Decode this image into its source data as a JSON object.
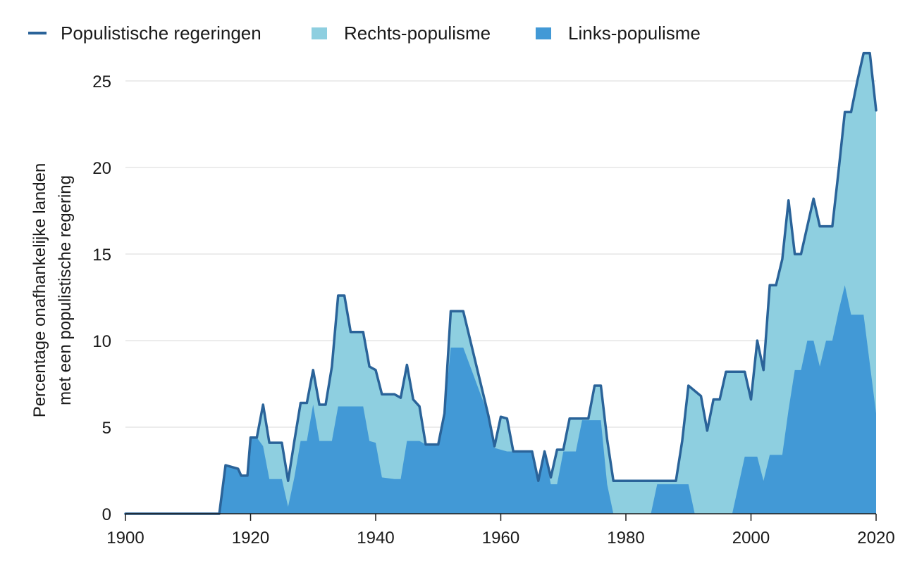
{
  "chart_data": {
    "type": "area",
    "xlim": [
      1900,
      2020
    ],
    "ylim": [
      0,
      25
    ],
    "xticks": [
      1900,
      1920,
      1940,
      1960,
      1980,
      2000,
      2020
    ],
    "yticks": [
      0,
      5,
      10,
      15,
      20,
      25
    ],
    "ylabel_lines": [
      "Percentage onafhankelijke landen",
      "met een populistische regering"
    ],
    "grid": "horizontal",
    "legend_position": "top-left",
    "legend": [
      {
        "key": "total",
        "label": "Populistische regeringen",
        "symbol": "line",
        "color": "#2a6399"
      },
      {
        "key": "right",
        "label": "Rechts-populisme",
        "symbol": "square",
        "color": "#8ecfe0"
      },
      {
        "key": "left",
        "label": "Links-populisme",
        "symbol": "square",
        "color": "#4299d6"
      }
    ],
    "series": [
      {
        "name": "Populistische regeringen",
        "kind": "line",
        "color": "#2a6399",
        "points": [
          [
            1900,
            0
          ],
          [
            1915,
            0
          ],
          [
            1916,
            2.8
          ],
          [
            1917,
            2.7
          ],
          [
            1918,
            2.6
          ],
          [
            1918.5,
            2.2
          ],
          [
            1919.5,
            2.2
          ],
          [
            1920,
            4.4
          ],
          [
            1921,
            4.4
          ],
          [
            1922,
            6.3
          ],
          [
            1923,
            4.1
          ],
          [
            1925,
            4.1
          ],
          [
            1926,
            1.9
          ],
          [
            1927,
            4.2
          ],
          [
            1928,
            6.4
          ],
          [
            1929,
            6.4
          ],
          [
            1930,
            8.3
          ],
          [
            1931,
            6.3
          ],
          [
            1932,
            6.3
          ],
          [
            1933,
            8.5
          ],
          [
            1934,
            12.6
          ],
          [
            1935,
            12.6
          ],
          [
            1936,
            10.5
          ],
          [
            1938,
            10.5
          ],
          [
            1939,
            8.5
          ],
          [
            1940,
            8.3
          ],
          [
            1941,
            6.9
          ],
          [
            1943,
            6.9
          ],
          [
            1944,
            6.7
          ],
          [
            1945,
            8.6
          ],
          [
            1946,
            6.6
          ],
          [
            1947,
            6.2
          ],
          [
            1948,
            4.0
          ],
          [
            1950,
            4.0
          ],
          [
            1951,
            5.8
          ],
          [
            1952,
            11.7
          ],
          [
            1954,
            11.7
          ],
          [
            1958,
            5.7
          ],
          [
            1959,
            3.9
          ],
          [
            1960,
            5.6
          ],
          [
            1961,
            5.5
          ],
          [
            1962,
            3.6
          ],
          [
            1964,
            3.6
          ],
          [
            1965,
            3.6
          ],
          [
            1966,
            1.9
          ],
          [
            1967,
            3.6
          ],
          [
            1968,
            2.1
          ],
          [
            1969,
            3.7
          ],
          [
            1970,
            3.7
          ],
          [
            1971,
            5.5
          ],
          [
            1974,
            5.5
          ],
          [
            1975,
            7.4
          ],
          [
            1976,
            7.4
          ],
          [
            1977,
            4.3
          ],
          [
            1978,
            1.9
          ],
          [
            1988,
            1.9
          ],
          [
            1989,
            4.2
          ],
          [
            1990,
            7.4
          ],
          [
            1992,
            6.8
          ],
          [
            1993,
            4.8
          ],
          [
            1994,
            6.6
          ],
          [
            1995,
            6.6
          ],
          [
            1996,
            8.2
          ],
          [
            1998,
            8.2
          ],
          [
            1999,
            8.2
          ],
          [
            2000,
            6.6
          ],
          [
            2001,
            10.0
          ],
          [
            2002,
            8.3
          ],
          [
            2003,
            13.2
          ],
          [
            2004,
            13.2
          ],
          [
            2005,
            14.7
          ],
          [
            2006,
            18.1
          ],
          [
            2007,
            15.0
          ],
          [
            2008,
            15.0
          ],
          [
            2010,
            18.2
          ],
          [
            2011,
            16.6
          ],
          [
            2013,
            16.6
          ],
          [
            2014,
            19.8
          ],
          [
            2015,
            23.2
          ],
          [
            2016,
            23.2
          ],
          [
            2017,
            25.0
          ],
          [
            2018,
            26.6
          ],
          [
            2019,
            26.6
          ],
          [
            2020,
            23.3
          ]
        ]
      },
      {
        "name": "Links-populisme",
        "kind": "area",
        "color": "#4299d6",
        "points": [
          [
            1900,
            0
          ],
          [
            1915,
            0
          ],
          [
            1916,
            2.8
          ],
          [
            1917,
            2.7
          ],
          [
            1918,
            2.6
          ],
          [
            1918.5,
            2.2
          ],
          [
            1919.5,
            2.2
          ],
          [
            1920,
            4.4
          ],
          [
            1921,
            4.4
          ],
          [
            1922,
            3.9
          ],
          [
            1923,
            2.0
          ],
          [
            1925,
            2.0
          ],
          [
            1926,
            0.4
          ],
          [
            1927,
            2.1
          ],
          [
            1928,
            4.2
          ],
          [
            1929,
            4.2
          ],
          [
            1930,
            6.3
          ],
          [
            1931,
            4.2
          ],
          [
            1932,
            4.2
          ],
          [
            1933,
            4.2
          ],
          [
            1934,
            6.2
          ],
          [
            1937,
            6.2
          ],
          [
            1938,
            6.2
          ],
          [
            1939,
            4.2
          ],
          [
            1940,
            4.1
          ],
          [
            1941,
            2.1
          ],
          [
            1943,
            2.0
          ],
          [
            1944,
            2.0
          ],
          [
            1945,
            4.2
          ],
          [
            1946,
            4.2
          ],
          [
            1947,
            4.2
          ],
          [
            1948,
            4.0
          ],
          [
            1950,
            4.0
          ],
          [
            1951,
            5.8
          ],
          [
            1952,
            9.6
          ],
          [
            1954,
            9.6
          ],
          [
            1958,
            5.7
          ],
          [
            1959,
            3.8
          ],
          [
            1960,
            3.7
          ],
          [
            1961,
            3.6
          ],
          [
            1962,
            3.6
          ],
          [
            1964,
            3.6
          ],
          [
            1965,
            3.6
          ],
          [
            1966,
            1.9
          ],
          [
            1967,
            3.6
          ],
          [
            1968,
            1.7
          ],
          [
            1969,
            1.7
          ],
          [
            1970,
            3.6
          ],
          [
            1971,
            3.6
          ],
          [
            1972,
            3.6
          ],
          [
            1973,
            5.4
          ],
          [
            1976,
            5.4
          ],
          [
            1977,
            1.7
          ],
          [
            1978,
            0
          ],
          [
            1984,
            0
          ],
          [
            1985,
            1.7
          ],
          [
            1990,
            1.7
          ],
          [
            1991,
            0
          ],
          [
            1997,
            0
          ],
          [
            1999,
            3.3
          ],
          [
            2000,
            3.3
          ],
          [
            2001,
            3.3
          ],
          [
            2002,
            1.9
          ],
          [
            2003,
            3.4
          ],
          [
            2004,
            3.4
          ],
          [
            2005,
            3.4
          ],
          [
            2006,
            6.0
          ],
          [
            2007,
            8.3
          ],
          [
            2008,
            8.3
          ],
          [
            2009,
            10.0
          ],
          [
            2010,
            10.0
          ],
          [
            2011,
            8.5
          ],
          [
            2012,
            10.0
          ],
          [
            2013,
            10.0
          ],
          [
            2014,
            11.7
          ],
          [
            2015,
            13.2
          ],
          [
            2016,
            11.5
          ],
          [
            2017,
            11.5
          ],
          [
            2018,
            11.5
          ],
          [
            2020,
            5.8
          ]
        ]
      }
    ]
  }
}
